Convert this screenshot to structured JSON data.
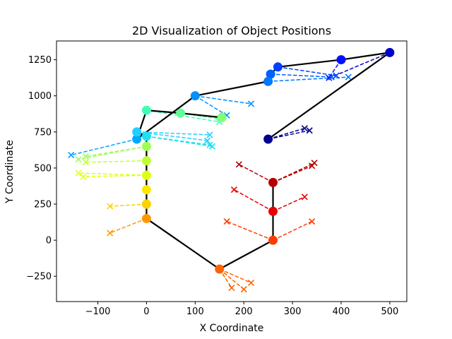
{
  "chart_data": {
    "type": "scatter",
    "title": "2D Visualization of Object Positions",
    "xlabel": "X Coordinate",
    "ylabel": "Y Coordinate",
    "xlim": [
      -185,
      535
    ],
    "ylim": [
      -425,
      1380
    ],
    "xticks": [
      -100,
      0,
      100,
      200,
      300,
      400,
      500
    ],
    "yticks": [
      -250,
      0,
      250,
      500,
      750,
      1000,
      1250
    ],
    "xtick_labels": [
      "−100",
      "0",
      "100",
      "200",
      "300",
      "400",
      "500"
    ],
    "ytick_labels": [
      "−250",
      "0",
      "250",
      "500",
      "750",
      "1000",
      "1250"
    ],
    "grid": false,
    "legend": false,
    "colormap": "jet",
    "skeleton_color": "#000000",
    "skeleton_path": [
      [
        250,
        700
      ],
      [
        500,
        1300
      ],
      [
        400,
        1250
      ],
      [
        270,
        1200
      ],
      [
        255,
        1150
      ],
      [
        250,
        1100
      ],
      [
        100,
        1000
      ],
      [
        -20,
        700
      ],
      [
        0,
        900
      ],
      [
        70,
        880
      ],
      [
        155,
        850
      ],
      "break",
      [
        -20,
        750
      ],
      [
        0,
        720
      ],
      [
        0,
        150
      ],
      [
        150,
        -200
      ],
      [
        260,
        0
      ],
      [
        260,
        400
      ]
    ],
    "objects": [
      {
        "id": 0,
        "x": 250,
        "y": 700,
        "color": "#00008f",
        "predictions": [
          [
            325,
            775
          ],
          [
            335,
            760
          ]
        ]
      },
      {
        "id": 1,
        "x": 500,
        "y": 1300,
        "color": "#0000c8",
        "predictions": [
          [
            380,
            1130
          ]
        ]
      },
      {
        "id": 2,
        "x": 400,
        "y": 1250,
        "color": "#0010ff",
        "predictions": [
          [
            375,
            1125
          ]
        ]
      },
      {
        "id": 3,
        "x": 270,
        "y": 1200,
        "color": "#0040ff",
        "predictions": [
          [
            390,
            1140
          ]
        ]
      },
      {
        "id": 4,
        "x": 255,
        "y": 1150,
        "color": "#0060ff",
        "predictions": [
          [
            380,
            1130
          ]
        ]
      },
      {
        "id": 5,
        "x": 250,
        "y": 1100,
        "color": "#0078ff",
        "predictions": [
          [
            415,
            1130
          ]
        ]
      },
      {
        "id": 6,
        "x": 100,
        "y": 1000,
        "color": "#0090ff",
        "predictions": [
          [
            215,
            945
          ],
          [
            165,
            865
          ]
        ]
      },
      {
        "id": 7,
        "x": -20,
        "y": 700,
        "color": "#00a8ff",
        "predictions": [
          [
            -155,
            590
          ]
        ]
      },
      {
        "id": 8,
        "x": -20,
        "y": 750,
        "color": "#20d0ff",
        "predictions": [
          [
            130,
            730
          ],
          [
            125,
            690
          ]
        ]
      },
      {
        "id": 9,
        "x": 0,
        "y": 720,
        "color": "#20e0f0",
        "predictions": [
          [
            130,
            660
          ],
          [
            135,
            650
          ]
        ]
      },
      {
        "id": 10,
        "x": 0,
        "y": 900,
        "color": "#40ffb7",
        "predictions": [
          [
            150,
            820
          ]
        ]
      },
      {
        "id": 11,
        "x": 70,
        "y": 880,
        "color": "#60ff97",
        "predictions": [
          [
            150,
            840
          ]
        ]
      },
      {
        "id": 12,
        "x": 155,
        "y": 850,
        "color": "#80ff77",
        "predictions": [
          [
            155,
            860
          ]
        ]
      },
      {
        "id": 13,
        "x": 0,
        "y": 650,
        "color": "#a0ff57",
        "predictions": [
          [
            -140,
            560
          ],
          [
            -125,
            580
          ]
        ]
      },
      {
        "id": 14,
        "x": 0,
        "y": 550,
        "color": "#c0ff37",
        "predictions": [
          [
            -125,
            540
          ]
        ]
      },
      {
        "id": 15,
        "x": 0,
        "y": 450,
        "color": "#e0ff17",
        "predictions": [
          [
            -140,
            465
          ],
          [
            -130,
            440
          ]
        ]
      },
      {
        "id": 16,
        "x": 0,
        "y": 350,
        "color": "#ffe800",
        "predictions": []
      },
      {
        "id": 17,
        "x": 0,
        "y": 250,
        "color": "#ffd000",
        "predictions": [
          [
            -75,
            235
          ]
        ]
      },
      {
        "id": 18,
        "x": 0,
        "y": 150,
        "color": "#ff9800",
        "predictions": [
          [
            -75,
            50
          ]
        ]
      },
      {
        "id": 19,
        "x": 150,
        "y": -200,
        "color": "#ff6400",
        "predictions": [
          [
            215,
            -295
          ],
          [
            175,
            -330
          ],
          [
            200,
            -340
          ]
        ]
      },
      {
        "id": 20,
        "x": 260,
        "y": 0,
        "color": "#ff3c00",
        "predictions": [
          [
            165,
            130
          ],
          [
            340,
            130
          ]
        ]
      },
      {
        "id": 21,
        "x": 260,
        "y": 200,
        "color": "#e80000",
        "predictions": [
          [
            180,
            350
          ],
          [
            325,
            300
          ]
        ]
      },
      {
        "id": 22,
        "x": 260,
        "y": 400,
        "color": "#b40000",
        "predictions": [
          [
            190,
            525
          ],
          [
            340,
            515
          ],
          [
            345,
            535
          ]
        ]
      }
    ]
  }
}
